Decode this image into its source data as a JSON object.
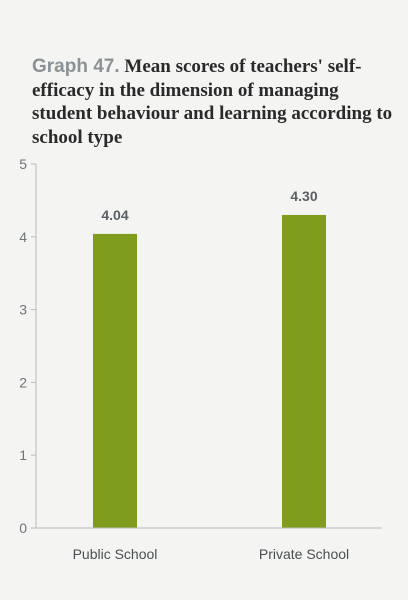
{
  "chart_data": {
    "type": "bar",
    "title_prefix": "Graph 47.",
    "title": "Mean scores of teachers' self-efficacy in the dimension of managing student behaviour and learning according to school type",
    "categories": [
      "Public School",
      "Private School"
    ],
    "values": [
      4.04,
      4.3
    ],
    "value_labels": [
      "4.04",
      "4.30"
    ],
    "ylim": [
      0,
      5
    ],
    "yticks": [
      0,
      1,
      2,
      3,
      4,
      5
    ],
    "xlabel": "",
    "ylabel": "",
    "grid": false,
    "bar_color": "#7f9c1c"
  }
}
